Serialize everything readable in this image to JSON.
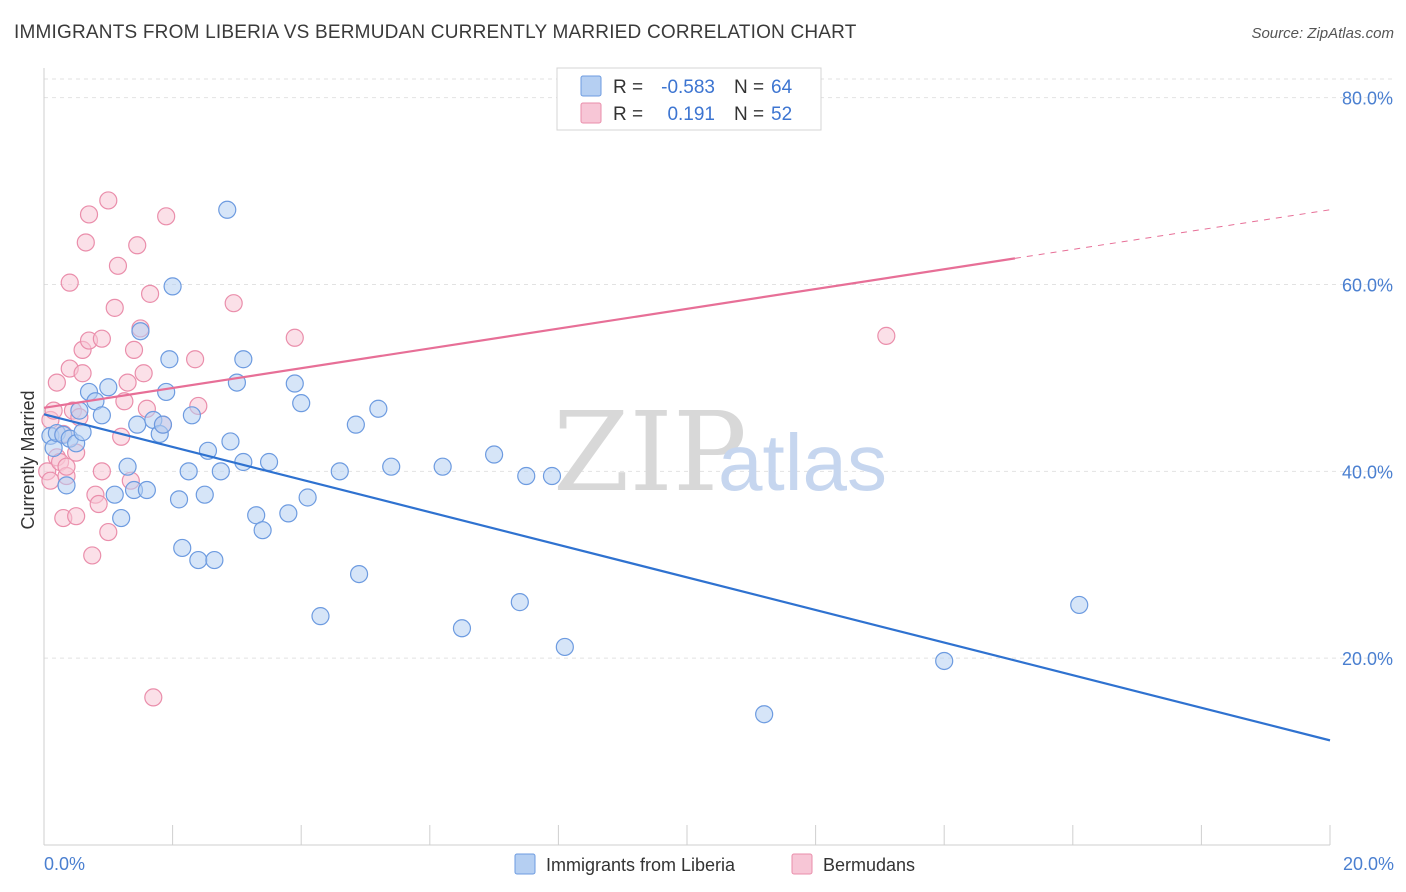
{
  "title": "IMMIGRANTS FROM LIBERIA VS BERMUDAN CURRENTLY MARRIED CORRELATION CHART",
  "source": "Source: ZipAtlas.com",
  "watermark": {
    "zip": "ZIP",
    "atlas": "atlas"
  },
  "colors": {
    "blue_fill": "#b5cff2",
    "blue_stroke": "#6d9be0",
    "blue_line": "#2f72d0",
    "pink_fill": "#f7c6d6",
    "pink_stroke": "#ea8eab",
    "pink_line": "#e76f97",
    "axis_text": "#4a7fd0",
    "grid": "#e2e2e2"
  },
  "legend": {
    "rows": [
      {
        "r_label": "R =",
        "r_value": "-0.583",
        "n_label": "N =",
        "n_value": "64"
      },
      {
        "r_label": "R =",
        "r_value": "0.191",
        "n_label": "N =",
        "n_value": "52"
      }
    ]
  },
  "bottom_legend": [
    "Immigrants from Liberia",
    "Bermudans"
  ],
  "chart_data": {
    "type": "scatter",
    "title": "IMMIGRANTS FROM LIBERIA VS BERMUDAN CURRENTLY MARRIED CORRELATION CHART",
    "xlabel": "",
    "ylabel": "Currently Married",
    "xlim": [
      0,
      20
    ],
    "ylim": [
      0,
      82
    ],
    "x_ticks": [
      0,
      20
    ],
    "x_tick_labels": [
      "0.0%",
      "20.0%"
    ],
    "y_ticks": [
      20,
      40,
      60,
      80
    ],
    "y_tick_labels": [
      "20.0%",
      "40.0%",
      "60.0%",
      "80.0%"
    ],
    "grid": true,
    "legend_position": "top-center",
    "series": [
      {
        "name": "Immigrants from Liberia",
        "color": "#6d9be0",
        "points": [
          [
            0.1,
            43.8
          ],
          [
            0.15,
            42.5
          ],
          [
            0.2,
            44.1
          ],
          [
            0.3,
            43.9
          ],
          [
            0.35,
            38.5
          ],
          [
            0.4,
            43.5
          ],
          [
            0.5,
            43.0
          ],
          [
            0.55,
            46.5
          ],
          [
            0.6,
            44.2
          ],
          [
            0.7,
            48.5
          ],
          [
            0.8,
            47.5
          ],
          [
            0.9,
            46.0
          ],
          [
            1.0,
            49.0
          ],
          [
            1.1,
            37.5
          ],
          [
            1.2,
            35.0
          ],
          [
            1.3,
            40.5
          ],
          [
            1.4,
            38.0
          ],
          [
            1.45,
            45.0
          ],
          [
            1.5,
            55.0
          ],
          [
            1.6,
            38.0
          ],
          [
            1.7,
            45.5
          ],
          [
            1.8,
            44.0
          ],
          [
            1.85,
            45.0
          ],
          [
            1.9,
            48.5
          ],
          [
            1.95,
            52.0
          ],
          [
            2.0,
            59.8
          ],
          [
            2.1,
            37.0
          ],
          [
            2.15,
            31.8
          ],
          [
            2.25,
            40.0
          ],
          [
            2.3,
            46.0
          ],
          [
            2.4,
            30.5
          ],
          [
            2.5,
            37.5
          ],
          [
            2.55,
            42.2
          ],
          [
            2.65,
            30.5
          ],
          [
            2.75,
            40.0
          ],
          [
            2.85,
            68.0
          ],
          [
            2.9,
            43.2
          ],
          [
            3.0,
            49.5
          ],
          [
            3.1,
            41.0
          ],
          [
            3.1,
            52.0
          ],
          [
            3.3,
            35.3
          ],
          [
            3.4,
            33.7
          ],
          [
            3.5,
            41.0
          ],
          [
            3.8,
            35.5
          ],
          [
            3.9,
            49.4
          ],
          [
            4.0,
            47.3
          ],
          [
            4.1,
            37.2
          ],
          [
            4.3,
            24.5
          ],
          [
            4.6,
            40.0
          ],
          [
            4.85,
            45.0
          ],
          [
            4.9,
            29.0
          ],
          [
            5.2,
            46.7
          ],
          [
            5.4,
            40.5
          ],
          [
            6.2,
            40.5
          ],
          [
            6.5,
            23.2
          ],
          [
            7.0,
            41.8
          ],
          [
            7.4,
            26.0
          ],
          [
            7.5,
            39.5
          ],
          [
            7.9,
            39.5
          ],
          [
            8.1,
            21.2
          ],
          [
            11.2,
            14.0
          ],
          [
            14.0,
            19.7
          ],
          [
            16.1,
            25.7
          ]
        ]
      },
      {
        "name": "Bermudans",
        "color": "#ea8eab",
        "points": [
          [
            0.05,
            40.0
          ],
          [
            0.1,
            45.5
          ],
          [
            0.1,
            39.0
          ],
          [
            0.15,
            46.5
          ],
          [
            0.2,
            41.5
          ],
          [
            0.2,
            49.5
          ],
          [
            0.25,
            41.0
          ],
          [
            0.3,
            44.0
          ],
          [
            0.3,
            35.0
          ],
          [
            0.35,
            39.5
          ],
          [
            0.35,
            40.5
          ],
          [
            0.4,
            51.0
          ],
          [
            0.4,
            60.2
          ],
          [
            0.45,
            46.5
          ],
          [
            0.5,
            42.0
          ],
          [
            0.5,
            35.2
          ],
          [
            0.55,
            45.8
          ],
          [
            0.6,
            50.5
          ],
          [
            0.6,
            53.0
          ],
          [
            0.65,
            64.5
          ],
          [
            0.7,
            54.0
          ],
          [
            0.7,
            67.5
          ],
          [
            0.75,
            31.0
          ],
          [
            0.8,
            37.5
          ],
          [
            0.85,
            36.5
          ],
          [
            0.9,
            40.0
          ],
          [
            0.9,
            54.2
          ],
          [
            1.0,
            69.0
          ],
          [
            1.0,
            33.5
          ],
          [
            1.1,
            57.5
          ],
          [
            1.15,
            62.0
          ],
          [
            1.2,
            43.7
          ],
          [
            1.25,
            47.5
          ],
          [
            1.3,
            49.5
          ],
          [
            1.35,
            39.0
          ],
          [
            1.4,
            53.0
          ],
          [
            1.45,
            64.2
          ],
          [
            1.5,
            55.3
          ],
          [
            1.55,
            50.5
          ],
          [
            1.6,
            46.7
          ],
          [
            1.65,
            59.0
          ],
          [
            1.7,
            15.8
          ],
          [
            1.85,
            45.0
          ],
          [
            1.9,
            67.3
          ],
          [
            2.35,
            52.0
          ],
          [
            2.4,
            47.0
          ],
          [
            2.95,
            58.0
          ],
          [
            3.9,
            54.3
          ],
          [
            13.1,
            54.5
          ]
        ]
      }
    ],
    "trend_lines": [
      {
        "series": "Immigrants from Liberia",
        "x": [
          0.0,
          20.0
        ],
        "y": [
          46.1,
          11.2
        ],
        "style": "solid"
      },
      {
        "series": "Bermudans",
        "x": [
          0.0,
          15.1
        ],
        "y": [
          46.8,
          62.8
        ],
        "style": "solid"
      },
      {
        "series": "Bermudans",
        "x": [
          15.1,
          20.0
        ],
        "y": [
          62.8,
          68.0
        ],
        "style": "dashed"
      }
    ]
  }
}
